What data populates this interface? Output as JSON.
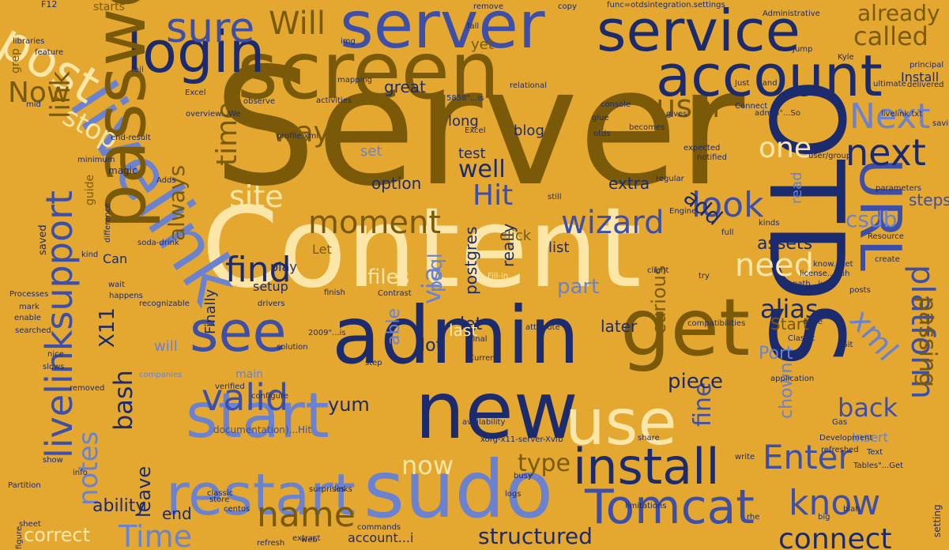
{
  "colors": {
    "background": "#E4A830",
    "dark_brown": "#7A5A08",
    "navy": "#1C2A6E",
    "mid_blue": "#3D4FA8",
    "light_blue": "#6A82CF",
    "cream": "#FCE7A8"
  },
  "words": [
    {
      "text": "Server",
      "color": "dark_brown"
    },
    {
      "text": "Content",
      "color": "cream"
    },
    {
      "text": "OTDS",
      "color": "navy"
    },
    {
      "text": "screen",
      "color": "dark_brown"
    },
    {
      "text": "livelink",
      "color": "light_blue"
    },
    {
      "text": "admin",
      "color": "navy"
    },
    {
      "text": "server",
      "color": "mid_blue"
    },
    {
      "text": "service",
      "color": "navy"
    },
    {
      "text": "login",
      "color": "navy"
    },
    {
      "text": "account",
      "color": "navy"
    },
    {
      "text": "URL",
      "color": "mid_blue"
    },
    {
      "text": "password",
      "color": "dark_brown"
    },
    {
      "text": "new",
      "color": "navy"
    },
    {
      "text": "sudo",
      "color": "light_blue"
    },
    {
      "text": "get",
      "color": "dark_brown"
    },
    {
      "text": "use",
      "color": "cream"
    },
    {
      "text": "start",
      "color": "light_blue"
    },
    {
      "text": "restart",
      "color": "light_blue"
    },
    {
      "text": "install",
      "color": "navy"
    },
    {
      "text": "Tomcat",
      "color": "mid_blue"
    },
    {
      "text": "see",
      "color": "mid_blue"
    },
    {
      "text": "post",
      "color": "cream"
    },
    {
      "text": "livelinksupport",
      "color": "mid_blue"
    },
    {
      "text": "Will",
      "color": "dark_brown"
    },
    {
      "text": "sure",
      "color": "mid_blue"
    },
    {
      "text": "Next",
      "color": "light_blue"
    },
    {
      "text": "next",
      "color": "navy"
    },
    {
      "text": "platform",
      "color": "mid_blue"
    },
    {
      "text": "xml",
      "color": "light_blue"
    },
    {
      "text": "Enter",
      "color": "mid_blue"
    },
    {
      "text": "know",
      "color": "mid_blue"
    },
    {
      "text": "connect",
      "color": "navy"
    },
    {
      "text": "moment",
      "color": "dark_brown"
    },
    {
      "text": "wizard",
      "color": "mid_blue"
    },
    {
      "text": "look",
      "color": "mid_blue"
    },
    {
      "text": "need",
      "color": "cream"
    },
    {
      "text": "valid",
      "color": "mid_blue"
    },
    {
      "text": "find",
      "color": "navy"
    },
    {
      "text": "name",
      "color": "dark_brown"
    },
    {
      "text": "Time",
      "color": "light_blue"
    },
    {
      "text": "Hit",
      "color": "mid_blue"
    },
    {
      "text": "site",
      "color": "cream"
    },
    {
      "text": "way",
      "color": "dark_brown"
    },
    {
      "text": "user",
      "color": "dark_brown"
    },
    {
      "text": "one",
      "color": "cream"
    },
    {
      "text": "time",
      "color": "dark_brown"
    },
    {
      "text": "already",
      "color": "dark_brown"
    },
    {
      "text": "called",
      "color": "dark_brown"
    },
    {
      "text": "stop",
      "color": "cream"
    },
    {
      "text": "Now",
      "color": "dark_brown"
    },
    {
      "text": "link",
      "color": "dark_brown"
    },
    {
      "text": "notes",
      "color": "light_blue"
    },
    {
      "text": "bash",
      "color": "navy"
    },
    {
      "text": "fine",
      "color": "mid_blue"
    },
    {
      "text": "back",
      "color": "mid_blue"
    },
    {
      "text": "now",
      "color": "cream"
    },
    {
      "text": "type",
      "color": "dark_brown"
    },
    {
      "text": "csdb",
      "color": "light_blue"
    },
    {
      "text": "alias",
      "color": "navy"
    },
    {
      "text": "passing",
      "color": "dark_brown"
    },
    {
      "text": "structured",
      "color": "navy"
    },
    {
      "text": "yum",
      "color": "navy"
    },
    {
      "text": "piece",
      "color": "navy"
    },
    {
      "text": "X11",
      "color": "navy"
    },
    {
      "text": "via",
      "color": "light_blue"
    },
    {
      "text": "files",
      "color": "cream"
    },
    {
      "text": "part",
      "color": "light_blue"
    },
    {
      "text": "well",
      "color": "navy"
    },
    {
      "text": "test",
      "color": "navy"
    },
    {
      "text": "add",
      "color": "navy"
    },
    {
      "text": "always",
      "color": "dark_brown"
    },
    {
      "text": "assets",
      "color": "navy"
    },
    {
      "text": "correct",
      "color": "cream"
    },
    {
      "text": "ability",
      "color": "navy"
    },
    {
      "text": "leave",
      "color": "navy"
    },
    {
      "text": "end",
      "color": "navy"
    },
    {
      "text": "option",
      "color": "navy"
    },
    {
      "text": "extra",
      "color": "navy"
    },
    {
      "text": "steps",
      "color": "mid_blue"
    },
    {
      "text": "Start",
      "color": "dark_brown"
    },
    {
      "text": "Port",
      "color": "light_blue"
    },
    {
      "text": "chown",
      "color": "light_blue"
    },
    {
      "text": "lot",
      "color": "navy"
    },
    {
      "text": "let",
      "color": "navy"
    },
    {
      "text": "last",
      "color": "cream"
    },
    {
      "text": "later",
      "color": "navy"
    },
    {
      "text": "curious",
      "color": "dark_brown"
    },
    {
      "text": "able",
      "color": "light_blue"
    },
    {
      "text": "psql",
      "color": "light_blue"
    },
    {
      "text": "postgres",
      "color": "navy"
    },
    {
      "text": "really",
      "color": "navy"
    },
    {
      "text": "setup",
      "color": "navy"
    },
    {
      "text": "play",
      "color": "navy"
    },
    {
      "text": "click",
      "color": "dark_brown"
    },
    {
      "text": "list",
      "color": "navy"
    },
    {
      "text": "Let",
      "color": "dark_brown"
    },
    {
      "text": "set",
      "color": "light_blue"
    },
    {
      "text": "great",
      "color": "navy"
    },
    {
      "text": "long",
      "color": "navy"
    },
    {
      "text": "blog",
      "color": "navy"
    },
    {
      "text": "yet",
      "color": "dark_brown"
    },
    {
      "text": "guide",
      "color": "dark_brown"
    },
    {
      "text": "Can",
      "color": "navy"
    },
    {
      "text": "will",
      "color": "light_blue"
    },
    {
      "text": "Finally",
      "color": "navy"
    },
    {
      "text": "main",
      "color": "light_blue"
    },
    {
      "text": "read",
      "color": "light_blue"
    },
    {
      "text": "Insert",
      "color": "light_blue"
    },
    {
      "text": "account...i",
      "color": "navy"
    },
    {
      "text": "Install",
      "color": "navy"
    },
    {
      "text": "grep",
      "color": "dark_brown"
    },
    {
      "text": "starts",
      "color": "dark_brown"
    },
    {
      "text": "F12",
      "color": "navy"
    },
    {
      "text": "func=otdsintegration.settings",
      "color": "navy"
    },
    {
      "text": "Administrative",
      "color": "navy"
    },
    {
      "text": "magic",
      "color": "navy"
    },
    {
      "text": "saved",
      "color": "navy"
    },
    {
      "text": "kind",
      "color": "navy"
    },
    {
      "text": "difference",
      "color": "navy"
    },
    {
      "text": "happens",
      "color": "navy"
    },
    {
      "text": "commands",
      "color": "navy"
    },
    {
      "text": "classic",
      "color": "navy"
    },
    {
      "text": "figure",
      "color": "navy"
    },
    {
      "text": "refresh",
      "color": "navy"
    },
    {
      "text": "extract",
      "color": "navy"
    },
    {
      "text": "setting",
      "color": "navy"
    },
    {
      "text": "xorg-x11-server-Xvfb",
      "color": "navy"
    },
    {
      "text": "availability",
      "color": "navy"
    },
    {
      "text": "Resource",
      "color": "navy"
    },
    {
      "text": "solution",
      "color": "navy"
    },
    {
      "text": "documentation)...Hit",
      "color": "mid_blue"
    },
    {
      "text": "compatibilities",
      "color": "navy"
    },
    {
      "text": "ultimate",
      "color": "navy"
    },
    {
      "text": "delivered",
      "color": "navy"
    },
    {
      "text": "Processes",
      "color": "navy"
    },
    {
      "text": "companies",
      "color": "light_blue"
    },
    {
      "text": "configure",
      "color": "navy"
    },
    {
      "text": "application",
      "color": "navy"
    },
    {
      "text": "parameters",
      "color": "navy"
    },
    {
      "text": "libraries",
      "color": "navy"
    },
    {
      "text": "feature",
      "color": "navy"
    },
    {
      "text": "end-result",
      "color": "navy"
    },
    {
      "text": "observe",
      "color": "navy"
    },
    {
      "text": "activities",
      "color": "navy"
    },
    {
      "text": "console",
      "color": "navy"
    },
    {
      "text": "mapping",
      "color": "navy"
    },
    {
      "text": "relational",
      "color": "navy"
    },
    {
      "text": "notified",
      "color": "navy"
    },
    {
      "text": "expected",
      "color": "navy"
    },
    {
      "text": "store",
      "color": "navy"
    },
    {
      "text": "surprises",
      "color": "navy"
    },
    {
      "text": "links",
      "color": "navy"
    },
    {
      "text": "Classic",
      "color": "navy"
    },
    {
      "text": "Fill-in",
      "color": "cream"
    },
    {
      "text": "finish",
      "color": "navy"
    },
    {
      "text": "path...just",
      "color": "navy"
    },
    {
      "text": "posts",
      "color": "navy"
    },
    {
      "text": "create",
      "color": "navy"
    },
    {
      "text": "Excel",
      "color": "navy"
    },
    {
      "text": "overview...We",
      "color": "navy"
    },
    {
      "text": "profile.xml",
      "color": "navy"
    },
    {
      "text": "5858\"...is",
      "color": "navy"
    },
    {
      "text": "admin\"...So",
      "color": "navy"
    },
    {
      "text": "livelink.txt",
      "color": "navy"
    },
    {
      "text": "principal",
      "color": "navy"
    },
    {
      "text": "saving",
      "color": "navy"
    },
    {
      "text": "Tables\"...Get",
      "color": "navy"
    },
    {
      "text": "Text",
      "color": "navy"
    },
    {
      "text": "Partition",
      "color": "navy"
    },
    {
      "text": "Development",
      "color": "navy"
    },
    {
      "text": "write",
      "color": "navy"
    },
    {
      "text": "share",
      "color": "navy"
    },
    {
      "text": "Current",
      "color": "navy"
    },
    {
      "text": "attribute",
      "color": "navy"
    },
    {
      "text": "final",
      "color": "navy"
    },
    {
      "text": "wait",
      "color": "navy"
    },
    {
      "text": "mark",
      "color": "navy"
    },
    {
      "text": "enable",
      "color": "navy"
    },
    {
      "text": "searched",
      "color": "navy"
    },
    {
      "text": "show",
      "color": "navy"
    },
    {
      "text": "sheet",
      "color": "navy"
    },
    {
      "text": "info",
      "color": "navy"
    },
    {
      "text": "nice",
      "color": "navy"
    },
    {
      "text": "slows",
      "color": "navy"
    },
    {
      "text": "removed",
      "color": "navy"
    },
    {
      "text": "centos",
      "color": "navy"
    },
    {
      "text": "verified",
      "color": "navy"
    },
    {
      "text": "client",
      "color": "navy"
    },
    {
      "text": "recognizable",
      "color": "navy"
    },
    {
      "text": "drivers",
      "color": "navy"
    },
    {
      "text": "Contrast",
      "color": "navy"
    },
    {
      "text": "2009\"...is",
      "color": "navy"
    },
    {
      "text": "glue",
      "color": "navy"
    },
    {
      "text": "otds",
      "color": "navy"
    },
    {
      "text": "becomes",
      "color": "navy"
    },
    {
      "text": "gives",
      "color": "navy"
    },
    {
      "text": "Connect",
      "color": "navy"
    },
    {
      "text": "remove",
      "color": "navy"
    },
    {
      "text": "copy",
      "color": "navy"
    },
    {
      "text": "Just",
      "color": "navy"
    },
    {
      "text": "land",
      "color": "navy"
    },
    {
      "text": "web",
      "color": "navy"
    },
    {
      "text": "step",
      "color": "navy"
    },
    {
      "text": "done",
      "color": "navy"
    },
    {
      "text": "busy",
      "color": "navy"
    },
    {
      "text": "logs",
      "color": "navy"
    },
    {
      "text": "Gas",
      "color": "navy"
    },
    {
      "text": "blah",
      "color": "navy"
    },
    {
      "text": "Excel",
      "color": "navy"
    },
    {
      "text": "try",
      "color": "navy"
    },
    {
      "text": "still",
      "color": "navy"
    },
    {
      "text": "full",
      "color": "navy"
    },
    {
      "text": "kinds",
      "color": "navy"
    },
    {
      "text": "license...duh",
      "color": "navy"
    },
    {
      "text": "user/group",
      "color": "navy"
    },
    {
      "text": "limitations",
      "color": "navy"
    },
    {
      "text": "Engine",
      "color": "navy"
    },
    {
      "text": "regular",
      "color": "navy"
    },
    {
      "text": "rhe",
      "color": "navy"
    },
    {
      "text": "big",
      "color": "navy"
    },
    {
      "text": "Git",
      "color": "navy"
    },
    {
      "text": "know...Let",
      "color": "navy"
    },
    {
      "text": "refreshed",
      "color": "navy"
    },
    {
      "text": "minimum",
      "color": "navy"
    },
    {
      "text": "soda-drink",
      "color": "navy"
    },
    {
      "text": "Adds",
      "color": "navy"
    },
    {
      "text": "mid",
      "color": "navy"
    },
    {
      "text": "tail",
      "color": "navy"
    },
    {
      "text": "fall",
      "color": "navy"
    },
    {
      "text": "img",
      "color": "navy"
    },
    {
      "text": "Jump",
      "color": "navy"
    },
    {
      "text": "Kyle",
      "color": "navy"
    }
  ]
}
